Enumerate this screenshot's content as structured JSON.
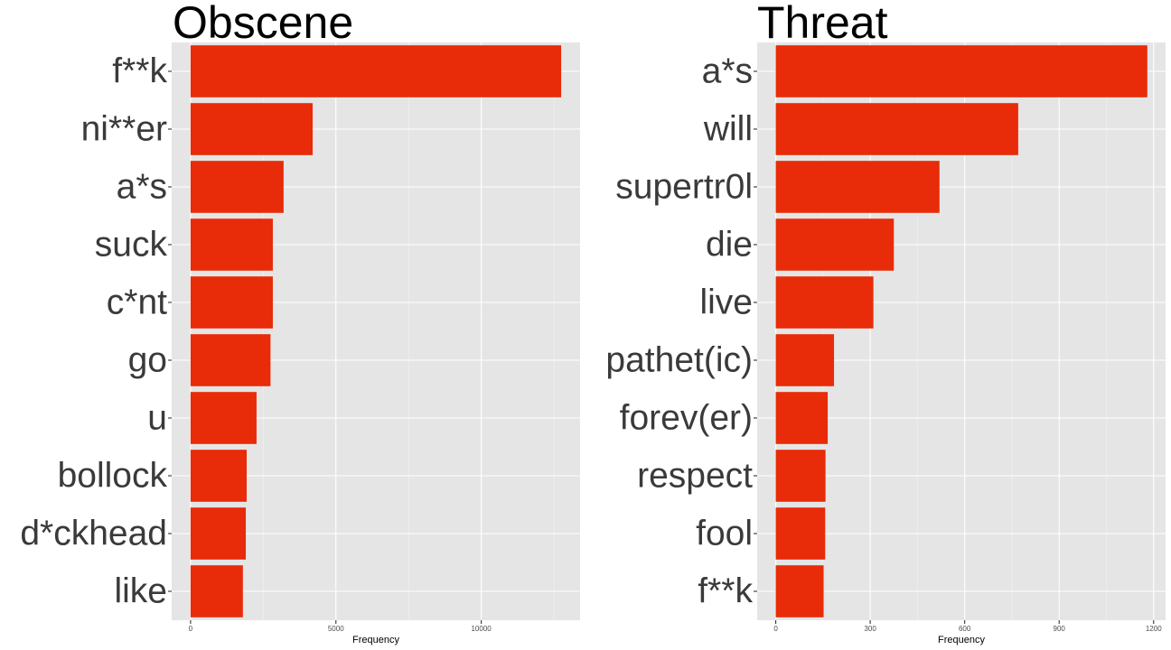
{
  "chart_data": [
    {
      "type": "bar",
      "orientation": "horizontal",
      "title": "Obscene",
      "xlabel": "Frequency",
      "ylabel": "",
      "categories": [
        "f**k",
        "ni**er",
        "a*s",
        "suck",
        "c*nt",
        "go",
        "u",
        "bollock",
        "d*ckhead",
        "like"
      ],
      "values": [
        12750,
        4200,
        3200,
        2830,
        2830,
        2750,
        2270,
        1930,
        1900,
        1800
      ],
      "xlim": [
        -650,
        13400
      ],
      "xticks": [
        0,
        5000,
        10000
      ],
      "xtick_labels": [
        "0",
        "5000",
        "10000"
      ],
      "bar_color": "#e82b09",
      "grid": true
    },
    {
      "type": "bar",
      "orientation": "horizontal",
      "title": "Threat",
      "xlabel": "Frequency",
      "ylabel": "",
      "categories": [
        "a*s",
        "will",
        "supertr0l",
        "die",
        "live",
        "pathet(ic)",
        "forev(er)",
        "respect",
        "fool",
        "f**k"
      ],
      "values": [
        1180,
        770,
        520,
        375,
        310,
        185,
        165,
        158,
        157,
        152
      ],
      "xlim": [
        -59,
        1238
      ],
      "xticks": [
        0,
        300,
        600,
        900,
        1200
      ],
      "xtick_labels": [
        "0",
        "300",
        "600",
        "900",
        "1200"
      ],
      "bar_color": "#e82b09",
      "grid": true
    }
  ]
}
